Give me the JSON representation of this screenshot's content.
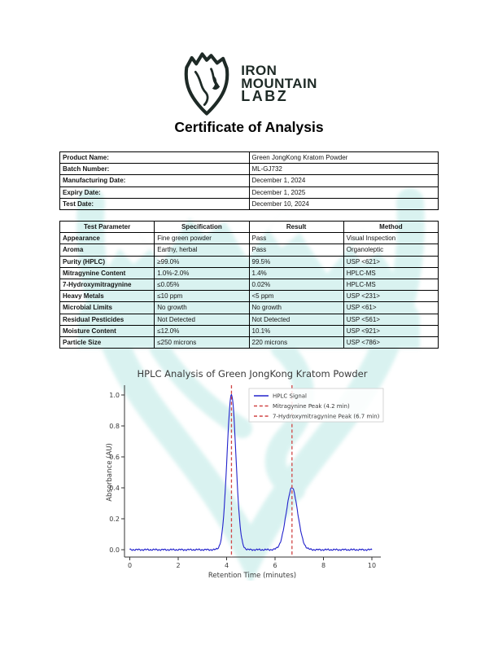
{
  "logo": {
    "line1": "IRON",
    "line2": "MOUNTAIN",
    "line3": "LABZ",
    "color": "#1e2a26"
  },
  "title": "Certificate of Analysis",
  "product_info": {
    "rows": [
      {
        "label": "Product Name:",
        "value": "Green JongKong Kratom Powder"
      },
      {
        "label": "Batch Number:",
        "value": "ML-GJ732"
      },
      {
        "label": "Manufacturing Date:",
        "value": "December 1, 2024"
      },
      {
        "label": "Expiry Date:",
        "value": "December 1, 2025"
      },
      {
        "label": "Test Date:",
        "value": "December 10, 2024"
      }
    ]
  },
  "test_table": {
    "headers": [
      "Test Parameter",
      "Specification",
      "Result",
      "Method"
    ],
    "rows": [
      [
        "Appearance",
        "Fine green powder",
        "Pass",
        "Visual Inspection"
      ],
      [
        "Aroma",
        "Earthy, herbal",
        "Pass",
        "Organoleptic"
      ],
      [
        "Purity (HPLC)",
        "≥99.0%",
        "99.5%",
        "USP <621>"
      ],
      [
        "Mitragynine Content",
        "1.0%-2.0%",
        "1.4%",
        "HPLC-MS"
      ],
      [
        "7-Hydroxymitragynine",
        "≤0.05%",
        "0.02%",
        "HPLC-MS"
      ],
      [
        "Heavy Metals",
        "≤10 ppm",
        "<5 ppm",
        "USP <231>"
      ],
      [
        "Microbial Limits",
        "No growth",
        "No growth",
        "USP <61>"
      ],
      [
        "Residual Pesticides",
        "Not Detected",
        "Not Detected",
        "USP <561>"
      ],
      [
        "Moisture Content",
        "≤12.0%",
        "10.1%",
        "USP <921>"
      ],
      [
        "Particle Size",
        "≤250 microns",
        "220 microns",
        "USP <786>"
      ]
    ]
  },
  "chart_data": {
    "type": "line",
    "title": "HPLC Analysis of Green JongKong Kratom Powder",
    "xlabel": "Retention Time (minutes)",
    "ylabel": "Absorbance (AU)",
    "xlim": [
      0,
      10
    ],
    "ylim": [
      -0.05,
      1.05
    ],
    "x_ticks": [
      0,
      2,
      4,
      6,
      8,
      10
    ],
    "y_ticks": [
      0.0,
      0.2,
      0.4,
      0.6,
      0.8,
      1.0
    ],
    "grid": false,
    "legend_position": "upper right",
    "series": [
      {
        "name": "HPLC Signal",
        "color": "#2222cc",
        "style": "solid",
        "baseline": 0.0,
        "noise_amplitude": 0.004,
        "peaks": [
          {
            "center": 4.2,
            "height": 1.0,
            "sigma": 0.185
          },
          {
            "center": 6.7,
            "height": 0.4,
            "sigma": 0.235
          }
        ]
      }
    ],
    "vlines": [
      {
        "x": 4.2,
        "label": "Mitragynine Peak (4.2 min)",
        "color": "#d04545",
        "style": "dashed"
      },
      {
        "x": 6.7,
        "label": "7-Hydroxymitragynine Peak (6.7 min)",
        "color": "#d04545",
        "style": "dashed"
      }
    ],
    "legend_entries": [
      {
        "label": "HPLC Signal",
        "color": "#2222cc",
        "style": "solid"
      },
      {
        "label": "Mitragynine Peak (4.2 min)",
        "color": "#d04545",
        "style": "dashed"
      },
      {
        "label": "7-Hydroxymitragynine Peak (6.7 min)",
        "color": "#d04545",
        "style": "dashed"
      }
    ]
  },
  "watermark": {
    "name": "iron-mountain-shield",
    "color": "#b4e6e2"
  }
}
